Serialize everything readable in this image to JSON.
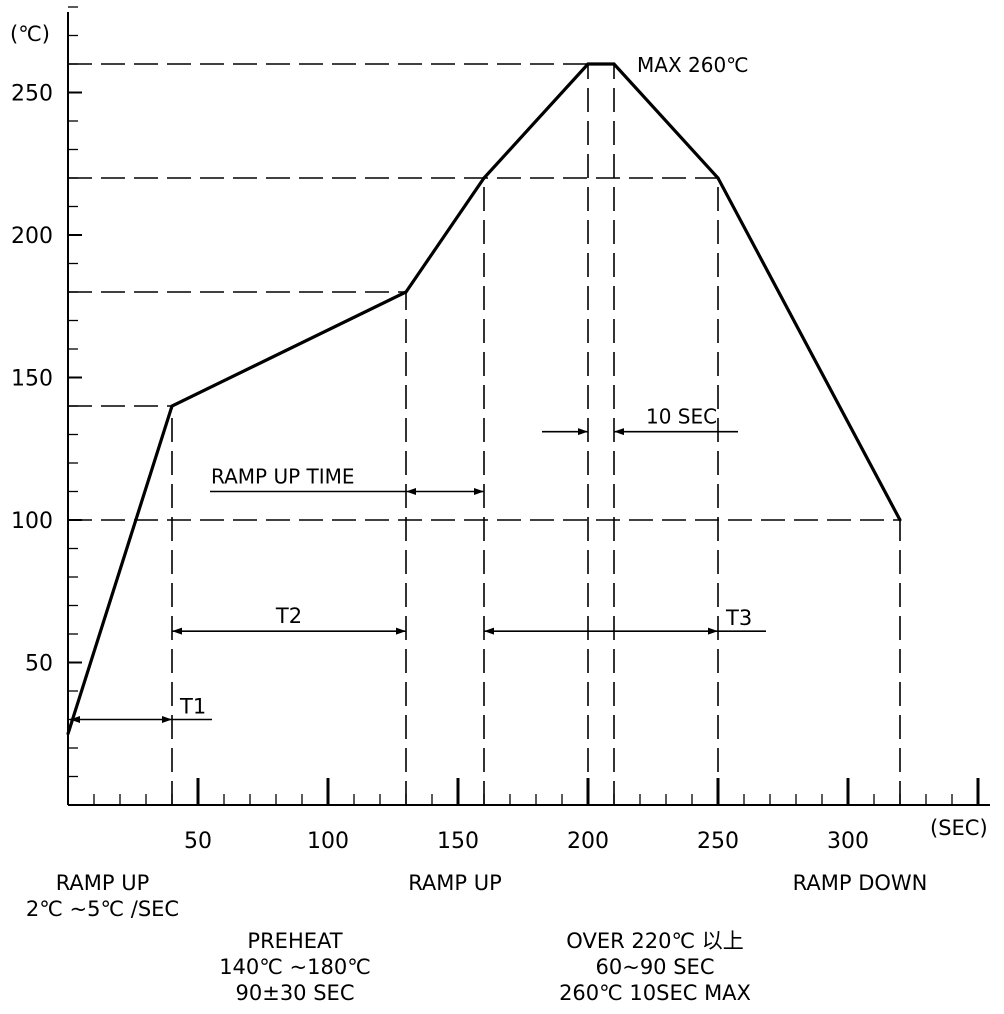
{
  "chart_data": {
    "type": "line",
    "y_unit_label": "(℃)",
    "x_unit_label": "(SEC)",
    "xlim": [
      0,
      355
    ],
    "ylim": [
      0,
      280
    ],
    "x_ticks": [
      50,
      100,
      150,
      200,
      250,
      300
    ],
    "y_ticks": [
      50,
      100,
      150,
      200,
      250
    ],
    "series": [
      {
        "values": [
          {
            "x": 0,
            "y": 25
          },
          {
            "x": 40,
            "y": 140
          },
          {
            "x": 130,
            "y": 180
          },
          {
            "x": 160,
            "y": 220
          },
          {
            "x": 200,
            "y": 260
          },
          {
            "x": 210,
            "y": 260
          },
          {
            "x": 250,
            "y": 220
          },
          {
            "x": 320,
            "y": 100
          }
        ]
      }
    ],
    "reference_lines": {
      "horizontal": [
        {
          "y": 260,
          "x_from": 0,
          "x_to": 200
        },
        {
          "y": 220,
          "x_from": 0,
          "x_to": 250
        },
        {
          "y": 180,
          "x_from": 0,
          "x_to": 130
        },
        {
          "y": 140,
          "x_from": 0,
          "x_to": 40
        },
        {
          "y": 100,
          "x_from": 0,
          "x_to": 320
        }
      ],
      "vertical": [
        {
          "x": 40,
          "y_from": 0,
          "y_to": 140
        },
        {
          "x": 130,
          "y_from": 0,
          "y_to": 180
        },
        {
          "x": 160,
          "y_from": 0,
          "y_to": 220
        },
        {
          "x": 200,
          "y_from": 0,
          "y_to": 260
        },
        {
          "x": 210,
          "y_from": 0,
          "y_to": 260
        },
        {
          "x": 250,
          "y_from": 0,
          "y_to": 220
        },
        {
          "x": 320,
          "y_from": 0,
          "y_to": 100
        }
      ]
    },
    "dimensions": [
      {
        "label": "T1",
        "x_from": 0,
        "x_to": 40,
        "y": 30
      },
      {
        "label": "T2",
        "x_from": 40,
        "x_to": 130,
        "y": 61
      },
      {
        "label": "T3",
        "x_from": 160,
        "x_to": 250,
        "y": 61
      },
      {
        "label": "RAMP UP TIME",
        "x_from": 130,
        "x_to": 160,
        "y": 110
      },
      {
        "label": "10 SEC",
        "x_from": 200,
        "x_to": 210,
        "y": 131
      }
    ],
    "annotations": {
      "max_label": "MAX 260℃"
    },
    "phase_notes": [
      {
        "id": "ramp-up-1",
        "lines": [
          "RAMP UP",
          "2℃ ~5℃ /SEC"
        ]
      },
      {
        "id": "preheat",
        "lines": [
          "PREHEAT",
          "140℃ ~180℃",
          "90±30 SEC"
        ]
      },
      {
        "id": "ramp-up-2",
        "lines": [
          "RAMP UP"
        ]
      },
      {
        "id": "reflow",
        "lines": [
          "OVER 220℃ 以上",
          "60~90 SEC",
          "260℃ 10SEC MAX"
        ]
      },
      {
        "id": "ramp-down",
        "lines": [
          "RAMP DOWN"
        ]
      }
    ],
    "colors": {
      "line": "#000000",
      "background": "#ffffff"
    }
  }
}
